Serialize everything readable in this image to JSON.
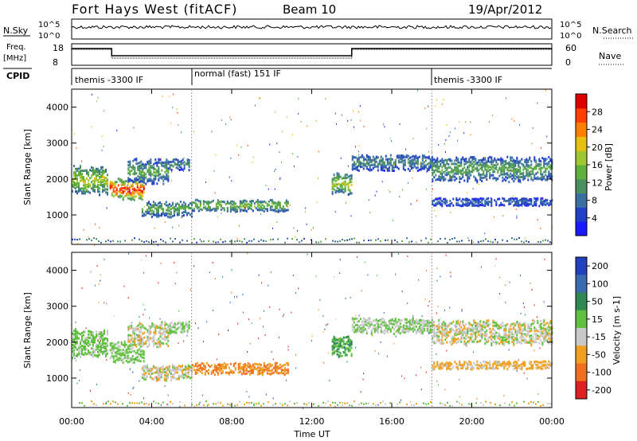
{
  "header": {
    "station": "Fort Hays West (fitACF)",
    "beam": "Beam 10",
    "date": "19/Apr/2012"
  },
  "noise_panel": {
    "left_label": "N.Sky",
    "right_label": "N.Search",
    "left_ticks": [
      "10^5",
      "10^0"
    ],
    "right_ticks": [
      "10^5",
      "10^0"
    ]
  },
  "freq_panel": {
    "left_label": "Freq.",
    "left_unit": "[MHz]",
    "right_label": "Nave",
    "left_ticks": [
      "18",
      "8"
    ],
    "right_ticks": [
      "60",
      "0"
    ]
  },
  "cpid_panel": {
    "label": "CPID",
    "segments": [
      {
        "text": "themis -3300 IF",
        "start_hour": 0
      },
      {
        "text": "normal (fast) 151 IF",
        "start_hour": 6
      },
      {
        "text": "themis -3300 IF",
        "start_hour": 18
      }
    ]
  },
  "x_axis": {
    "label": "Time UT",
    "ticks": [
      "00:00",
      "04:00",
      "08:00",
      "12:00",
      "16:00",
      "20:00",
      "00:00"
    ]
  },
  "power_panel": {
    "ylabel": "Slant Range [km]",
    "yticks": [
      "1000",
      "2000",
      "3000",
      "4000"
    ],
    "colorbar_label": "Power [dB]",
    "colorbar_ticks": [
      "4",
      "8",
      "12",
      "16",
      "20",
      "24",
      "28"
    ],
    "colorbar_colors": [
      "#1a1aff",
      "#2040c8",
      "#3a70a0",
      "#4a9060",
      "#60b040",
      "#a0c830",
      "#e8c010",
      "#ff8000",
      "#ff4000",
      "#e00000"
    ]
  },
  "velocity_panel": {
    "ylabel": "Slant Range [km]",
    "yticks": [
      "1000",
      "2000",
      "3000",
      "4000"
    ],
    "colorbar_label": "Velocity [m s-1]",
    "colorbar_ticks": [
      "200",
      "100",
      "50",
      "15",
      "-15",
      "-50",
      "-100",
      "-200"
    ],
    "colorbar_colors": [
      "#2040c0",
      "#3a6ab0",
      "#2e8a50",
      "#60c040",
      "#c8c8c8",
      "#f0a020",
      "#f07020",
      "#e02020"
    ]
  },
  "chart_data": {
    "type": "heatmap",
    "x_range_hours": [
      0,
      24
    ],
    "y_range_km": [
      180,
      4500
    ],
    "echo_regions": [
      {
        "start": 0.0,
        "end": 1.8,
        "center_km": 2000,
        "halfwidth_km": 350,
        "power_db": 14,
        "velocity": 10
      },
      {
        "start": 1.9,
        "end": 3.6,
        "center_km": 1750,
        "halfwidth_km": 250,
        "power_db": 22,
        "velocity": 10
      },
      {
        "start": 2.8,
        "end": 4.8,
        "center_km": 2250,
        "halfwidth_km": 300,
        "power_db": 10,
        "velocity": 0
      },
      {
        "start": 4.8,
        "end": 5.9,
        "center_km": 2450,
        "halfwidth_km": 150,
        "power_db": 8,
        "velocity": 5
      },
      {
        "start": 3.5,
        "end": 6.0,
        "center_km": 1200,
        "halfwidth_km": 200,
        "power_db": 10,
        "velocity": 0
      },
      {
        "start": 6.0,
        "end": 10.8,
        "center_km": 1300,
        "halfwidth_km": 150,
        "power_db": 12,
        "velocity": -30
      },
      {
        "start": 13.0,
        "end": 14.0,
        "center_km": 1900,
        "halfwidth_km": 250,
        "power_db": 14,
        "velocity": 30
      },
      {
        "start": 14.0,
        "end": 18.0,
        "center_km": 2500,
        "halfwidth_km": 200,
        "power_db": 8,
        "velocity": 5
      },
      {
        "start": 18.0,
        "end": 24.0,
        "center_km": 2300,
        "halfwidth_km": 300,
        "power_db": 10,
        "velocity": 0
      },
      {
        "start": 18.0,
        "end": 24.0,
        "center_km": 1400,
        "halfwidth_km": 100,
        "power_db": 6,
        "velocity": -10
      }
    ],
    "nave_steps": [
      {
        "start": 0,
        "end": 2,
        "value": 60
      },
      {
        "start": 2,
        "end": 14,
        "value": 30
      },
      {
        "start": 14,
        "end": 24,
        "value": 60
      }
    ]
  }
}
